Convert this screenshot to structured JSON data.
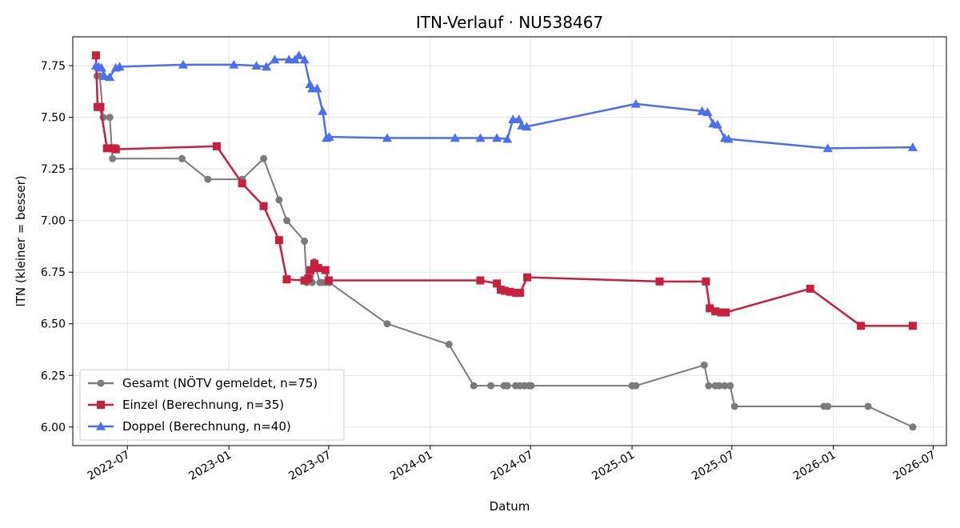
{
  "chart_data": {
    "type": "line",
    "title": "ITN-Verlauf · NU538467",
    "xlabel": "Datum",
    "ylabel": "ITN  (kleiner = besser)",
    "x_type": "date",
    "xlim": [
      "2022-03-24",
      "2026-07-25"
    ],
    "ylim": [
      5.91,
      7.89
    ],
    "yticks": [
      6.0,
      6.25,
      6.5,
      6.75,
      7.0,
      7.25,
      7.5,
      7.75
    ],
    "ytick_labels": [
      "6.00",
      "6.25",
      "6.50",
      "6.75",
      "7.00",
      "7.25",
      "7.50",
      "7.75"
    ],
    "xticks": [
      "2022-07-01",
      "2023-01-01",
      "2023-07-01",
      "2024-01-01",
      "2024-07-01",
      "2025-01-01",
      "2025-07-01",
      "2026-01-01",
      "2026-07-01"
    ],
    "xtick_labels": [
      "2022-07",
      "2023-01",
      "2023-07",
      "2024-01",
      "2024-07",
      "2025-01",
      "2025-07",
      "2026-01",
      "2026-07"
    ],
    "grid": true,
    "legend_position": "lower-left",
    "series": [
      {
        "name": "Gesamt (NÖTV gemeldet, n=75)",
        "color": "#444444",
        "marker": "circle",
        "x": [
          "2022-05-07",
          "2022-05-12",
          "2022-05-18",
          "2022-05-30",
          "2022-06-04",
          "2022-10-08",
          "2022-11-24",
          "2023-01-25",
          "2023-03-05",
          "2023-04-02",
          "2023-04-16",
          "2023-05-18",
          "2023-05-22",
          "2023-06-01",
          "2023-06-05",
          "2023-06-15",
          "2023-06-18",
          "2023-06-25",
          "2023-07-02",
          "2023-10-15",
          "2024-02-04",
          "2024-03-20",
          "2024-04-20",
          "2024-05-14",
          "2024-05-20",
          "2024-06-04",
          "2024-06-12",
          "2024-06-20",
          "2024-06-28",
          "2024-07-02",
          "2025-01-01",
          "2025-01-08",
          "2025-05-12",
          "2025-05-20",
          "2025-06-01",
          "2025-06-08",
          "2025-06-18",
          "2025-06-28",
          "2025-07-06",
          "2025-12-15",
          "2025-12-22",
          "2026-03-05",
          "2026-05-25"
        ],
        "values": [
          7.7,
          7.7,
          7.5,
          7.5,
          7.3,
          7.3,
          7.2,
          7.2,
          7.3,
          7.1,
          7.0,
          6.9,
          6.7,
          6.7,
          6.8,
          6.7,
          6.7,
          6.7,
          6.7,
          6.5,
          6.4,
          6.2,
          6.2,
          6.2,
          6.2,
          6.2,
          6.2,
          6.2,
          6.2,
          6.2,
          6.2,
          6.2,
          6.3,
          6.2,
          6.2,
          6.2,
          6.2,
          6.2,
          6.1,
          6.1,
          6.1,
          6.1,
          6.0
        ]
      },
      {
        "name": "Einzel (Berechnung, n=35)",
        "color": "#c8203e",
        "marker": "square",
        "x": [
          "2022-05-05",
          "2022-05-08",
          "2022-05-13",
          "2022-05-25",
          "2022-06-07",
          "2022-06-10",
          "2022-12-10",
          "2023-01-25",
          "2023-03-05",
          "2023-04-02",
          "2023-04-16",
          "2023-05-18",
          "2023-05-25",
          "2023-05-29",
          "2023-06-05",
          "2023-06-12",
          "2023-06-25",
          "2023-07-01",
          "2024-04-01",
          "2024-05-01",
          "2024-05-08",
          "2024-05-15",
          "2024-05-25",
          "2024-06-05",
          "2024-06-12",
          "2024-06-25",
          "2025-02-20",
          "2025-05-15",
          "2025-05-22",
          "2025-06-01",
          "2025-06-12",
          "2025-06-20",
          "2025-11-20",
          "2026-02-20",
          "2026-05-25"
        ],
        "values": [
          7.8,
          7.55,
          7.55,
          7.35,
          7.35,
          7.345,
          7.36,
          7.18,
          7.07,
          6.905,
          6.715,
          6.71,
          6.72,
          6.76,
          6.79,
          6.77,
          6.76,
          6.71,
          6.71,
          6.695,
          6.665,
          6.66,
          6.655,
          6.65,
          6.65,
          6.725,
          6.705,
          6.705,
          6.575,
          6.56,
          6.555,
          6.555,
          6.67,
          6.49,
          6.49
        ]
      },
      {
        "name": "Doppel (Berechnung, n=40)",
        "color": "#4c6ef0",
        "marker": "triangle",
        "x": [
          "2022-05-05",
          "2022-05-10",
          "2022-05-15",
          "2022-05-20",
          "2022-05-30",
          "2022-06-10",
          "2022-06-17",
          "2022-10-10",
          "2023-01-10",
          "2023-02-20",
          "2023-03-10",
          "2023-03-25",
          "2023-04-20",
          "2023-05-01",
          "2023-05-08",
          "2023-05-18",
          "2023-05-28",
          "2023-06-01",
          "2023-06-10",
          "2023-06-20",
          "2023-06-27",
          "2023-07-02",
          "2023-10-15",
          "2024-02-15",
          "2024-04-01",
          "2024-05-01",
          "2024-05-20",
          "2024-05-30",
          "2024-06-10",
          "2024-06-15",
          "2024-06-24",
          "2025-01-08",
          "2025-05-08",
          "2025-05-18",
          "2025-05-28",
          "2025-06-05",
          "2025-06-18",
          "2025-06-25",
          "2025-12-22",
          "2026-05-25"
        ],
        "values": [
          7.75,
          7.745,
          7.74,
          7.7,
          7.695,
          7.74,
          7.745,
          7.755,
          7.755,
          7.75,
          7.745,
          7.78,
          7.78,
          7.78,
          7.8,
          7.78,
          7.66,
          7.64,
          7.64,
          7.53,
          7.4,
          7.405,
          7.4,
          7.4,
          7.4,
          7.4,
          7.395,
          7.49,
          7.49,
          7.46,
          7.455,
          7.565,
          7.53,
          7.525,
          7.47,
          7.465,
          7.4,
          7.395,
          7.35,
          7.355
        ]
      }
    ]
  }
}
